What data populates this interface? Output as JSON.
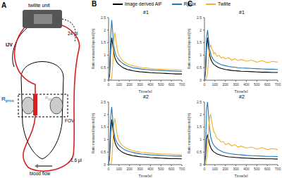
{
  "figure": {
    "panel_labels": [
      "A",
      "B",
      "C"
    ],
    "diagram": {
      "unit": "twilite unit",
      "vein": "IJV",
      "tube_volume": "24 µl",
      "proximal": {
        "main": "R",
        "sub": "prox"
      },
      "distal": {
        "main": "R",
        "sub": "dist"
      },
      "fov": "FOV",
      "flow": "blood flow",
      "loop_volume": "1.6 µl"
    }
  },
  "chart_data": [
    {
      "type": "line",
      "title": "#1",
      "xlabel": "Time[s]",
      "ylabel": "Ratio measured/injected [%]",
      "xlim": [
        0,
        700
      ],
      "xticks": [
        0,
        100,
        200,
        300,
        400,
        500,
        600,
        700
      ],
      "ylim": [
        0,
        2.5
      ],
      "yticks": [
        0,
        0.5,
        1,
        1.5,
        2,
        2.5
      ],
      "grid": false,
      "x": [
        0,
        10,
        20,
        30,
        40,
        50,
        60,
        70,
        80,
        90,
        100,
        120,
        140,
        160,
        180,
        200,
        230,
        260,
        290,
        320,
        350,
        400,
        450,
        500,
        550,
        600,
        650,
        700
      ],
      "series": [
        {
          "name": "Image derived AIF",
          "color": "#000000",
          "values": [
            0,
            0.2,
            1.2,
            1.7,
            1.4,
            1.1,
            0.9,
            0.8,
            0.72,
            0.66,
            0.62,
            0.55,
            0.5,
            0.46,
            0.43,
            0.41,
            0.38,
            0.36,
            0.34,
            0.33,
            0.32,
            0.3,
            0.29,
            0.28,
            0.27,
            0.26,
            0.25,
            0.25
          ]
        },
        {
          "name": "Rprox",
          "color": "#1f77b4",
          "values": [
            0,
            0.3,
            1.8,
            2.4,
            1.9,
            1.4,
            1.15,
            1.0,
            0.92,
            0.86,
            0.8,
            0.72,
            0.66,
            0.61,
            0.57,
            0.54,
            0.5,
            0.48,
            0.46,
            0.44,
            0.43,
            0.41,
            0.4,
            0.39,
            0.38,
            0.37,
            0.36,
            0.35
          ]
        },
        {
          "name": "Twilite",
          "color": "#f0b030",
          "values": [
            0,
            0,
            0,
            0.1,
            0.6,
            1.5,
            1.9,
            1.6,
            1.3,
            1.1,
            0.98,
            0.85,
            0.76,
            0.7,
            0.65,
            0.62,
            0.58,
            0.55,
            0.52,
            0.5,
            0.49,
            0.47,
            0.45,
            0.44,
            0.43,
            0.42,
            0.41,
            0.4
          ]
        }
      ]
    },
    {
      "type": "line",
      "title": "#2",
      "xlabel": "Time[s]",
      "ylabel": "Ratio measured/injected [%]",
      "xlim": [
        0,
        700
      ],
      "xticks": [
        0,
        100,
        200,
        300,
        400,
        500,
        600,
        700
      ],
      "ylim": [
        0,
        2.5
      ],
      "yticks": [
        0,
        0.5,
        1,
        1.5,
        2,
        2.5
      ],
      "grid": false,
      "x": [
        0,
        10,
        20,
        30,
        40,
        50,
        60,
        70,
        80,
        90,
        100,
        120,
        140,
        160,
        180,
        200,
        230,
        260,
        290,
        320,
        350,
        400,
        450,
        500,
        550,
        600,
        650,
        700
      ],
      "series": [
        {
          "name": "Image derived AIF",
          "color": "#000000",
          "values": [
            0,
            0.3,
            1.3,
            1.8,
            1.45,
            1.1,
            0.9,
            0.78,
            0.7,
            0.64,
            0.6,
            0.53,
            0.48,
            0.44,
            0.41,
            0.39,
            0.36,
            0.34,
            0.32,
            0.31,
            0.3,
            0.28,
            0.27,
            0.26,
            0.25,
            0.24,
            0.24,
            0.23
          ]
        },
        {
          "name": "Rprox",
          "color": "#1f77b4",
          "values": [
            0,
            0.4,
            1.9,
            2.3,
            1.8,
            1.35,
            1.1,
            0.96,
            0.88,
            0.82,
            0.77,
            0.69,
            0.63,
            0.58,
            0.55,
            0.52,
            0.49,
            0.46,
            0.44,
            0.42,
            0.41,
            0.39,
            0.38,
            0.37,
            0.36,
            0.35,
            0.34,
            0.34
          ]
        },
        {
          "name": "Twilite",
          "color": "#f0b030",
          "values": [
            0,
            0,
            0,
            0.15,
            0.8,
            1.6,
            1.85,
            1.55,
            1.25,
            1.05,
            0.95,
            0.82,
            0.74,
            0.68,
            0.63,
            0.6,
            0.56,
            0.53,
            0.51,
            0.49,
            0.48,
            0.46,
            0.44,
            0.43,
            0.42,
            0.41,
            0.4,
            0.39
          ]
        }
      ]
    },
    {
      "type": "line",
      "title": "#1",
      "xlabel": "Time[s]",
      "ylabel": "Ratio measured/injected [%]",
      "xlim": [
        0,
        700
      ],
      "xticks": [
        0,
        100,
        200,
        300,
        400,
        500,
        600,
        700
      ],
      "ylim": [
        0,
        2.5
      ],
      "yticks": [
        0,
        0.5,
        1,
        1.5,
        2,
        2.5
      ],
      "grid": false,
      "x": [
        0,
        10,
        20,
        30,
        40,
        50,
        60,
        70,
        80,
        90,
        100,
        120,
        140,
        160,
        180,
        200,
        230,
        260,
        290,
        320,
        350,
        400,
        450,
        500,
        550,
        600,
        650,
        700
      ],
      "series": [
        {
          "name": "Image derived AIF",
          "color": "#000000",
          "values": [
            0,
            0.3,
            1.3,
            1.7,
            1.3,
            1.0,
            0.85,
            0.75,
            0.68,
            0.63,
            0.6,
            0.54,
            0.5,
            0.47,
            0.45,
            0.43,
            0.41,
            0.39,
            0.38,
            0.37,
            0.36,
            0.35,
            0.34,
            0.33,
            0.32,
            0.32,
            0.31,
            0.31
          ]
        },
        {
          "name": "Rprox",
          "color": "#1f77b4",
          "values": [
            0,
            0.4,
            1.7,
            2.0,
            1.6,
            1.25,
            1.05,
            0.93,
            0.86,
            0.8,
            0.76,
            0.7,
            0.66,
            0.62,
            0.6,
            0.58,
            0.55,
            0.53,
            0.52,
            0.5,
            0.49,
            0.48,
            0.47,
            0.46,
            0.45,
            0.44,
            0.44,
            0.43
          ]
        },
        {
          "name": "Twilite",
          "color": "#f0b030",
          "values": [
            0,
            0,
            0.1,
            0.3,
            0.9,
            1.3,
            1.4,
            1.25,
            1.2,
            1.05,
            1.1,
            0.95,
            1.0,
            0.88,
            0.92,
            0.85,
            0.9,
            0.8,
            0.86,
            0.78,
            0.83,
            0.76,
            0.8,
            0.72,
            0.78,
            0.7,
            0.75,
            0.72
          ]
        }
      ]
    },
    {
      "type": "line",
      "title": "#2",
      "xlabel": "Time[s]",
      "ylabel": "Ratio measured/injected [%]",
      "xlim": [
        0,
        700
      ],
      "xticks": [
        0,
        100,
        200,
        300,
        400,
        500,
        600,
        700
      ],
      "ylim": [
        0,
        2.5
      ],
      "yticks": [
        0,
        0.5,
        1,
        1.5,
        2,
        2.5
      ],
      "grid": false,
      "x": [
        0,
        10,
        20,
        30,
        40,
        50,
        60,
        70,
        80,
        90,
        100,
        120,
        140,
        160,
        180,
        200,
        230,
        260,
        290,
        320,
        350,
        400,
        450,
        500,
        550,
        600,
        650,
        700
      ],
      "series": [
        {
          "name": "Image derived AIF",
          "color": "#000000",
          "values": [
            0,
            0.3,
            1.0,
            1.2,
            1.0,
            0.8,
            0.68,
            0.6,
            0.55,
            0.51,
            0.48,
            0.43,
            0.4,
            0.37,
            0.35,
            0.33,
            0.31,
            0.3,
            0.29,
            0.28,
            0.27,
            0.26,
            0.25,
            0.24,
            0.24,
            0.23,
            0.23,
            0.22
          ]
        },
        {
          "name": "Rprox",
          "color": "#1f77b4",
          "values": [
            0,
            0.5,
            2.2,
            2.5,
            1.9,
            1.4,
            1.1,
            0.95,
            0.85,
            0.78,
            0.72,
            0.64,
            0.58,
            0.54,
            0.5,
            0.48,
            0.45,
            0.43,
            0.41,
            0.4,
            0.39,
            0.37,
            0.36,
            0.35,
            0.34,
            0.33,
            0.33,
            0.32
          ]
        },
        {
          "name": "Twilite",
          "color": "#f0b030",
          "values": [
            0,
            0,
            0.2,
            0.6,
            1.5,
            1.9,
            2.0,
            1.7,
            1.5,
            1.3,
            1.25,
            1.05,
            1.0,
            0.9,
            0.92,
            0.8,
            0.85,
            0.75,
            0.8,
            0.7,
            0.74,
            0.66,
            0.7,
            0.62,
            0.68,
            0.6,
            0.64,
            0.6
          ]
        }
      ]
    }
  ]
}
